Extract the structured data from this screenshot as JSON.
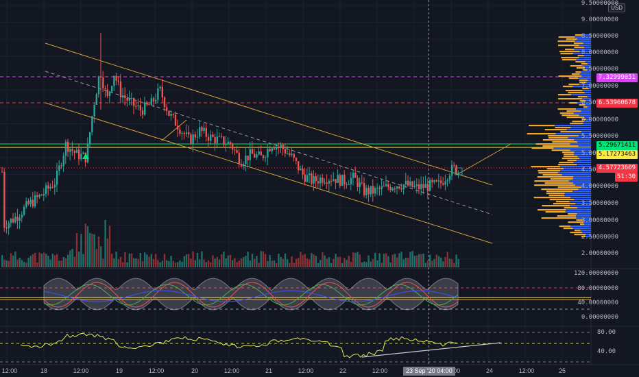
{
  "currency": "USD",
  "price_axis": [
    "9.50000000",
    "9.00000000",
    "8.50000000",
    "8.00000000",
    "7.50000000",
    "7.00000000",
    "6.50000000",
    "6.00000000",
    "5.50000000",
    "5.00000000",
    "4.50000000",
    "4.00000000",
    "3.50000000",
    "3.00000000",
    "2.50000000",
    "2.00000000"
  ],
  "price_tags": [
    {
      "label": "7.32999051",
      "color": "#e040fb",
      "text_color": "#ffffff"
    },
    {
      "label": "6.53960678",
      "color": "#f23645",
      "text_color": "#ffffff"
    },
    {
      "label": "5.29671411",
      "color": "#00e676",
      "text_color": "#000000"
    },
    {
      "label": "5.17273463",
      "color": "#ffeb3b",
      "text_color": "#000000"
    },
    {
      "label": "4.57723609",
      "color": "#f23645",
      "text_color": "#ffffff"
    },
    {
      "label": "51:30",
      "color": "#f23645",
      "text_color": "#ffffff"
    }
  ],
  "oscillator_axis": [
    "120.00000000",
    "80.00000000",
    "40.00000000",
    "0.00000000"
  ],
  "rsi_axis": [
    "80.00",
    "40.00"
  ],
  "time_axis": [
    "12:00",
    "18",
    "12:00",
    "19",
    "12:00",
    "20",
    "12:00",
    "21",
    "12:00",
    "22",
    "12:00",
    "23",
    "12:00",
    "24",
    "12:00",
    "25"
  ],
  "cursor_date": "23 Sep '20   04:00",
  "colors": {
    "background": "#131722",
    "bull": "#26a69a",
    "bear": "#ef5350",
    "volume_profile_up": "#2962ff",
    "volume_profile_down": "#f0a92a",
    "channel": "#d4a23a",
    "horizontal_green": "#00e676",
    "horizontal_yellow": "#ffeb3b",
    "magenta_level": "#e040fb",
    "red_level": "#f23645"
  }
}
